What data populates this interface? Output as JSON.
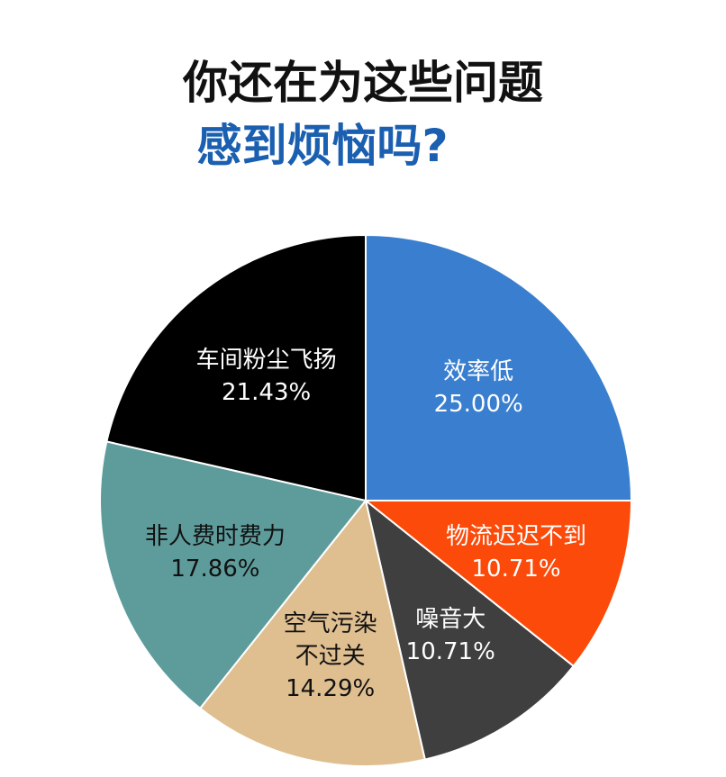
{
  "chart_data": {
    "type": "pie",
    "title": "你还在为这些问题",
    "subtitle": "感到烦恼吗?",
    "categories": [
      "效率低",
      "物流迟迟不到",
      "噪音大",
      "空气污染不过关",
      "非人费时费力",
      "车间粉尘飞扬"
    ],
    "values": [
      25.0,
      10.71,
      10.71,
      14.29,
      17.86,
      21.43
    ],
    "value_labels": [
      "25.00%",
      "10.71%",
      "10.71%",
      "14.29%",
      "17.86%",
      "21.43%"
    ],
    "colors": [
      "#3a7fcf",
      "#fb4a0a",
      "#3f3f3f",
      "#dfbf90",
      "#5e9c9c",
      "#000000"
    ]
  }
}
